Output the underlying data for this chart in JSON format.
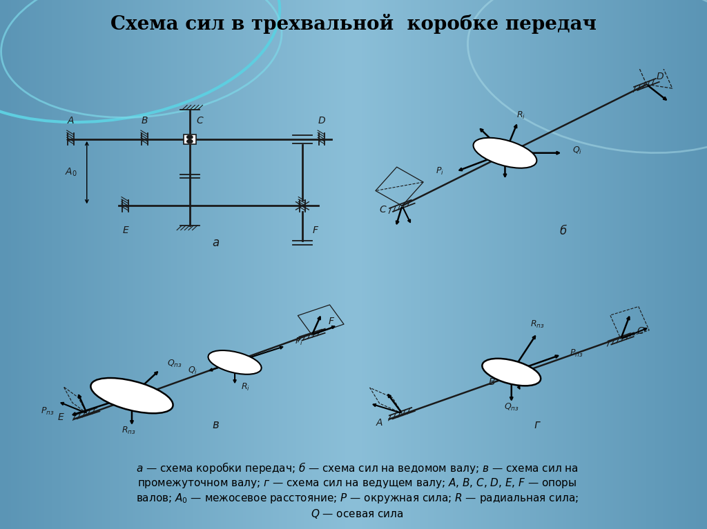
{
  "title": "Схема сил в трехвальной  коробке передач",
  "title_fontsize": 20,
  "bg_slide": "#7da8c0",
  "bg_white": "#ffffff",
  "bg_caption": "#f5f5f5",
  "line_color": "#1a1a1a",
  "panel_a_label": "а",
  "panel_b_label": "б",
  "panel_v_label": "в",
  "panel_g_label": "г",
  "caption_line1": "а — схема коробки передач; б — схема сил на ведомом валу; в — схема сил на",
  "caption_line2": "промежуточном валу; г — схема сил на ведущем валу; A, B, C, D, E, F — опоры",
  "caption_line3": "валов; A₀ — межосевое расстояние; P — окружная сила; R — радиальная сила;",
  "caption_line4": "Q — осевая сила",
  "caption_bold_words": [
    "б",
    "в",
    "на"
  ]
}
